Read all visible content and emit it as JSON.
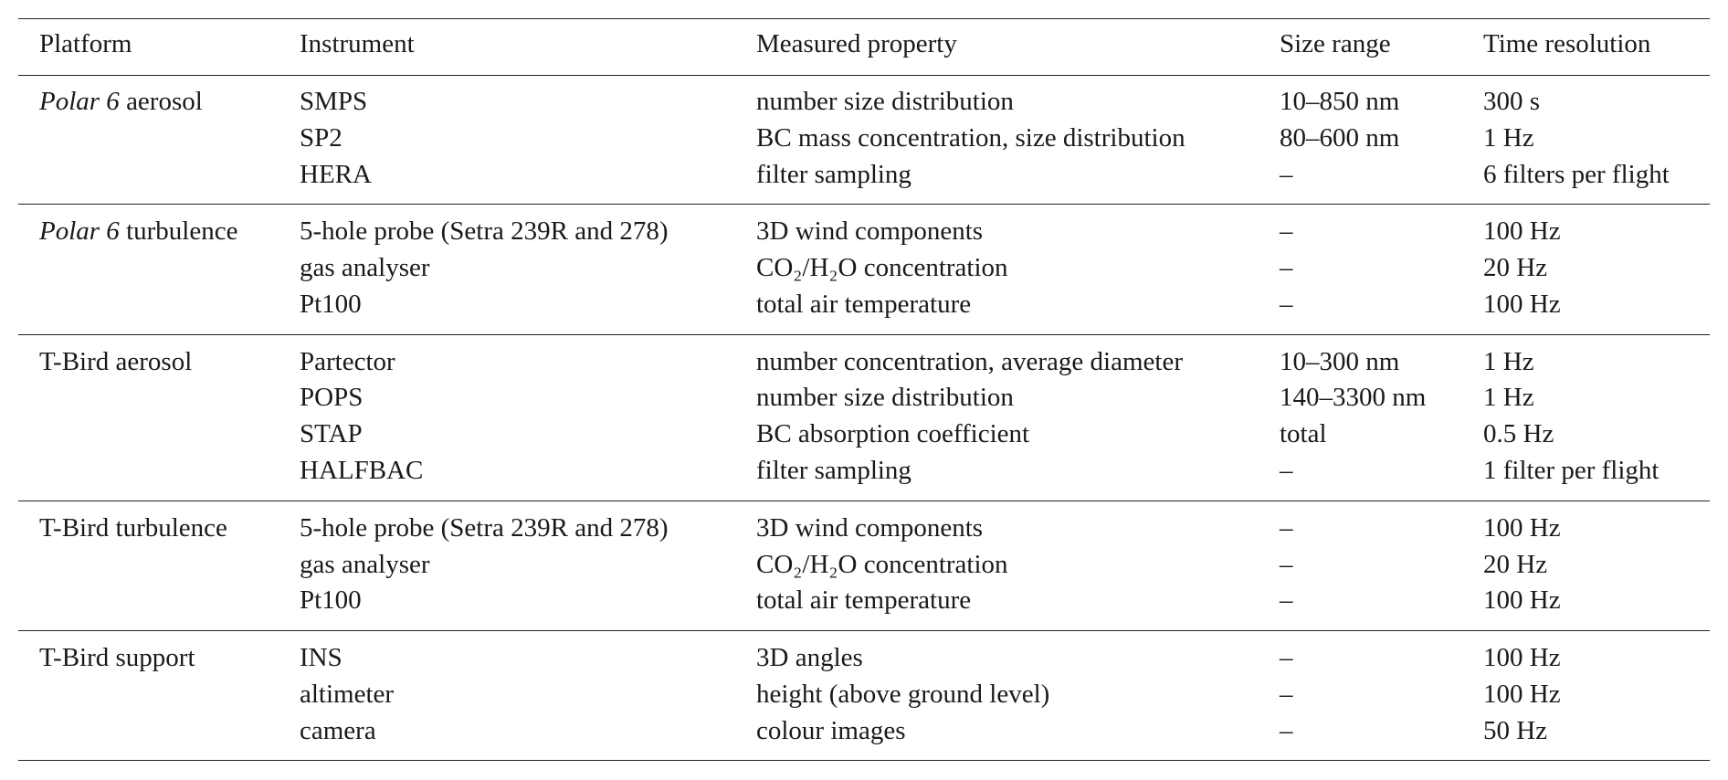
{
  "table": {
    "header": [
      "Platform",
      "Instrument",
      "Measured property",
      "Size range",
      "Time resolution"
    ],
    "groups": [
      {
        "platform_italic": "Polar 6",
        "platform": " aerosol",
        "rows": [
          [
            "SMPS",
            "number size distribution",
            "10–850 nm",
            "300 s"
          ],
          [
            "SP2",
            "BC mass concentration, size distribution",
            "80–600 nm",
            "1 Hz"
          ],
          [
            "HERA",
            "filter sampling",
            "–",
            "6 filters per flight"
          ]
        ]
      },
      {
        "platform_italic": "Polar 6",
        "platform": " turbulence",
        "rows": [
          [
            "5-hole probe (Setra 239R and 278)",
            "3D wind components",
            "–",
            "100 Hz"
          ],
          [
            "gas analyser",
            "CO₂/H₂O concentration",
            "–",
            "20 Hz"
          ],
          [
            "Pt100",
            "total air temperature",
            "–",
            "100 Hz"
          ]
        ]
      },
      {
        "platform": "T-Bird aerosol",
        "rows": [
          [
            "Partector",
            "number concentration, average diameter",
            "10–300 nm",
            "1 Hz"
          ],
          [
            "POPS",
            "number size distribution",
            "140–3300 nm",
            "1 Hz"
          ],
          [
            "STAP",
            "BC absorption coefficient",
            "total",
            "0.5 Hz"
          ],
          [
            "HALFBAC",
            "filter sampling",
            "–",
            "1 filter per flight"
          ]
        ]
      },
      {
        "platform": "T-Bird turbulence",
        "rows": [
          [
            "5-hole probe (Setra 239R and 278)",
            "3D wind components",
            "–",
            "100 Hz"
          ],
          [
            "gas analyser",
            "CO₂/H₂O concentration",
            "–",
            "20 Hz"
          ],
          [
            "Pt100",
            "total air temperature",
            "–",
            "100 Hz"
          ]
        ]
      },
      {
        "platform": "T-Bird support",
        "rows": [
          [
            "INS",
            "3D angles",
            "–",
            "100 Hz"
          ],
          [
            "altimeter",
            "height (above ground level)",
            "–",
            "100 Hz"
          ],
          [
            "camera",
            "colour images",
            "–",
            "50 Hz"
          ]
        ]
      }
    ]
  }
}
